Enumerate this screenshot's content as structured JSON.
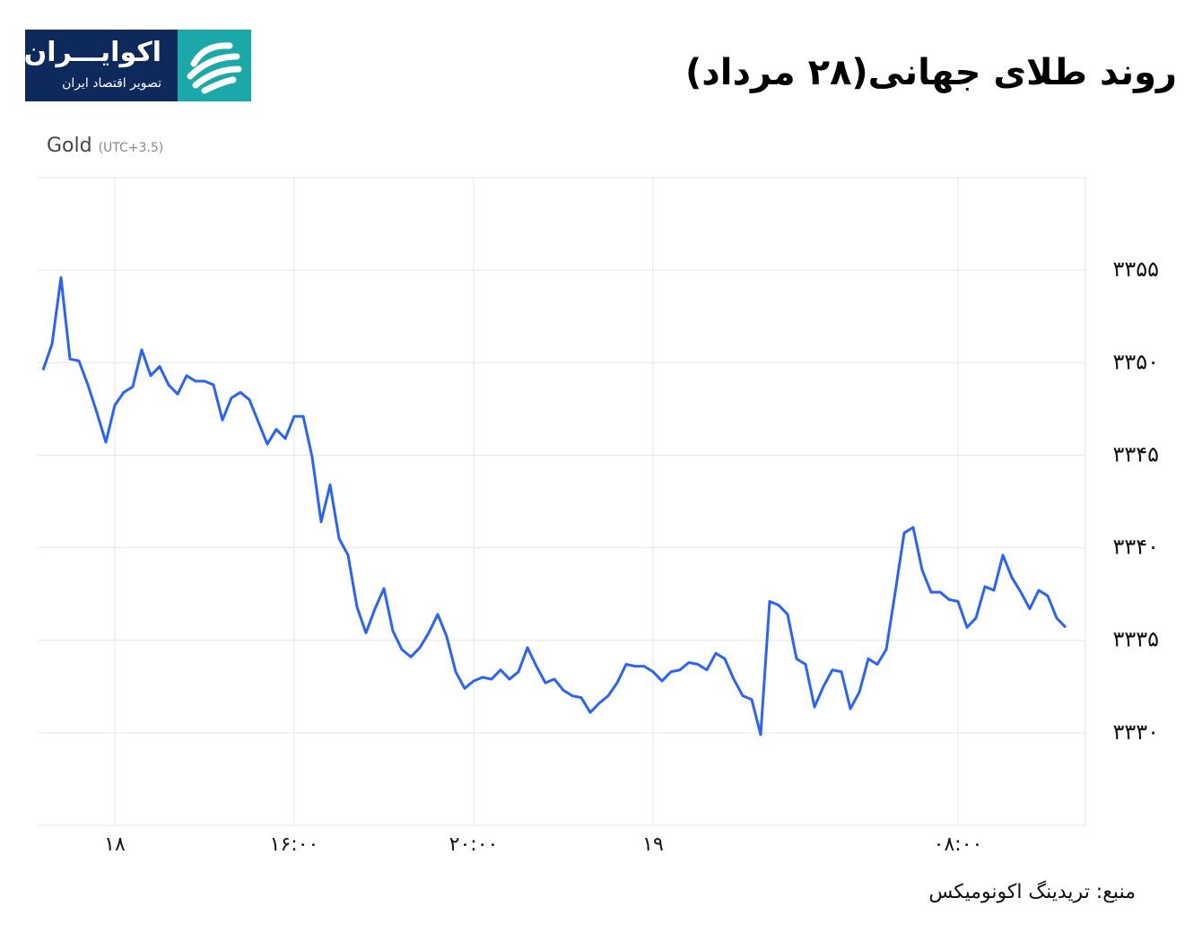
{
  "header": {
    "title": "روند طلای جهانی(۲۸ مرداد)",
    "logo": {
      "name": "اکوایـــران",
      "tagline": "تصویر اقتصاد ایران"
    }
  },
  "chart_data": {
    "type": "line",
    "title": "Gold",
    "subtitle": "(UTC+3.5)",
    "color": "#2962ff",
    "grid": true,
    "x": [
      null,
      null,
      null,
      null,
      null,
      null,
      null,
      null,
      "۱۸",
      null,
      null,
      null,
      null,
      null,
      null,
      null,
      null,
      null,
      null,
      null,
      null,
      null,
      null,
      null,
      null,
      null,
      null,
      null,
      "۱۶:۰۰",
      null,
      null,
      null,
      null,
      null,
      null,
      null,
      null,
      null,
      null,
      null,
      null,
      null,
      null,
      null,
      null,
      null,
      null,
      null,
      "۲۰:۰۰",
      null,
      null,
      null,
      null,
      null,
      null,
      null,
      null,
      null,
      null,
      null,
      null,
      null,
      null,
      null,
      null,
      null,
      null,
      null,
      "۱۹",
      null,
      null,
      null,
      null,
      null,
      null,
      null,
      null,
      null,
      null,
      null,
      null,
      null,
      null,
      null,
      null,
      null,
      null,
      null,
      null,
      null,
      null,
      null,
      null,
      null,
      null,
      null,
      null,
      null,
      null,
      null,
      null,
      null,
      "۰۸:۰۰",
      null,
      null,
      null,
      null,
      null,
      null,
      null,
      null,
      null,
      null,
      null,
      null
    ],
    "values": [
      3349.6,
      3351.0,
      3354.6,
      3350.2,
      3350.1,
      3348.8,
      3347.3,
      3345.7,
      3347.7,
      3348.4,
      3348.7,
      3350.7,
      3349.3,
      3349.8,
      3348.8,
      3348.3,
      3349.3,
      3349.0,
      3349.0,
      3348.8,
      3346.9,
      3348.1,
      3348.4,
      3348.0,
      3346.8,
      3345.6,
      3346.4,
      3345.9,
      3347.1,
      3347.1,
      3344.9,
      3341.4,
      3343.4,
      3340.5,
      3339.6,
      3336.8,
      3335.4,
      3336.7,
      3337.8,
      3335.5,
      3334.5,
      3334.1,
      3334.6,
      3335.4,
      3336.4,
      3335.2,
      3333.3,
      3332.4,
      3332.8,
      3333.0,
      3332.9,
      3333.4,
      3332.9,
      3333.3,
      3334.6,
      3333.6,
      3332.7,
      3332.9,
      3332.3,
      3332.0,
      3331.9,
      3331.1,
      3331.6,
      3332.0,
      3332.7,
      3333.7,
      3333.6,
      3333.6,
      3333.3,
      3332.8,
      3333.3,
      3333.4,
      3333.8,
      3333.7,
      3333.4,
      3334.3,
      3334.0,
      3332.9,
      3332.0,
      3331.8,
      3329.9,
      3337.1,
      3336.9,
      3336.4,
      3334.0,
      3333.7,
      3331.4,
      3332.5,
      3333.4,
      3333.3,
      3331.3,
      3332.2,
      3334.0,
      3333.7,
      3334.5,
      3337.6,
      3340.8,
      3341.1,
      3338.8,
      3337.6,
      3337.6,
      3337.2,
      3337.1,
      3335.7,
      3336.2,
      3337.9,
      3337.7,
      3339.6,
      3338.4,
      3337.6,
      3336.7,
      3337.7,
      3337.4,
      3336.2,
      3335.7
    ],
    "ylim": [
      3325,
      3360
    ],
    "yticks": [
      {
        "value": 3330,
        "label": "۳۳۳۰"
      },
      {
        "value": 3335,
        "label": "۳۳۳۵"
      },
      {
        "value": 3340,
        "label": "۳۳۴۰"
      },
      {
        "value": 3345,
        "label": "۳۳۴۵"
      },
      {
        "value": 3350,
        "label": "۳۳۵۰"
      },
      {
        "value": 3355,
        "label": "۳۳۵۵"
      }
    ]
  },
  "source": "منبع: تریدینگ اکونومیکس"
}
